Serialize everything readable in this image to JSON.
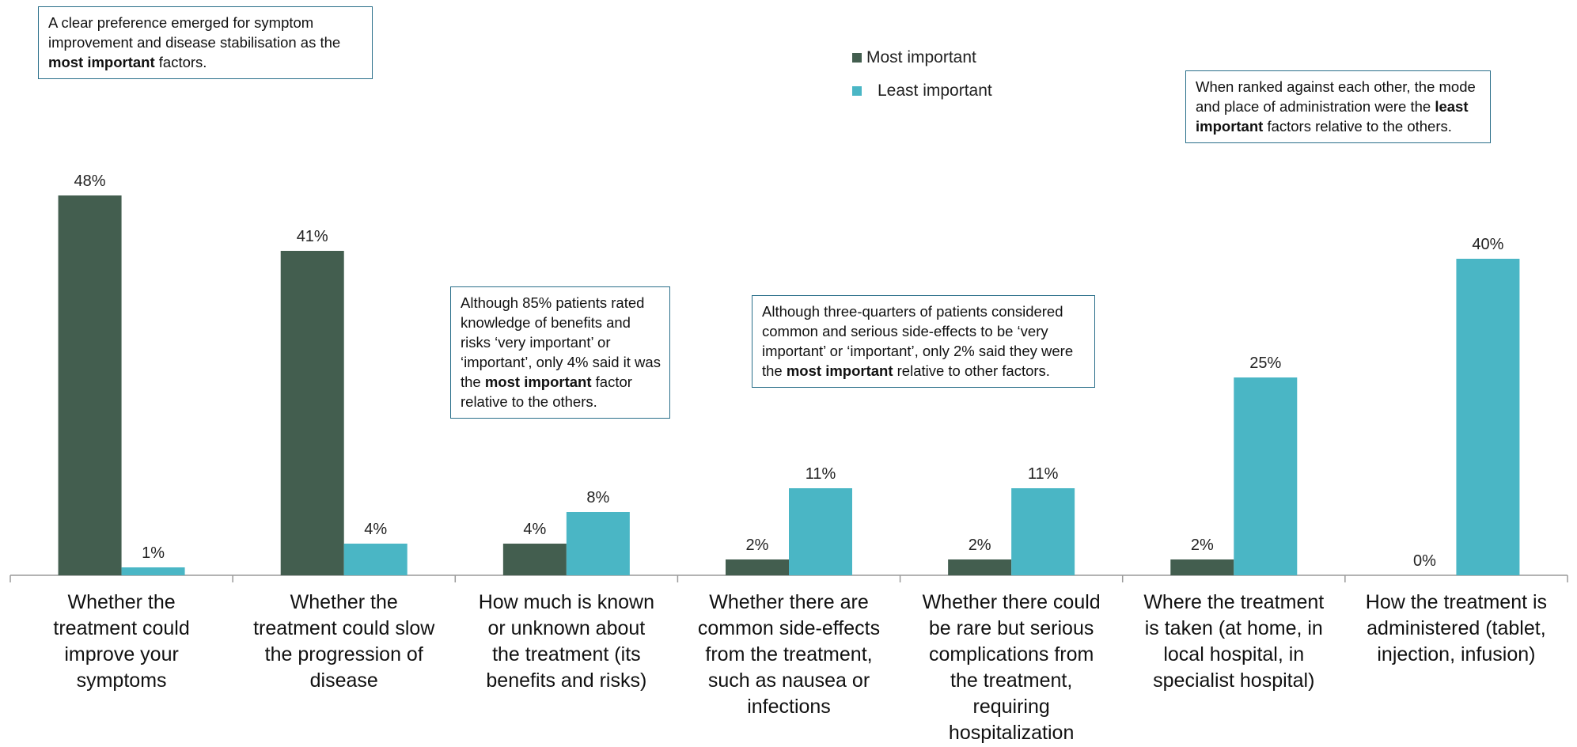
{
  "chart_data": {
    "type": "bar",
    "categories": [
      [
        "Whether the",
        "treatment could",
        "improve your",
        "symptoms"
      ],
      [
        "Whether the",
        "treatment could slow",
        "the progression of",
        "disease"
      ],
      [
        "How much is known",
        "or unknown about",
        "the treatment (its",
        "benefits and risks)"
      ],
      [
        "Whether there are",
        "common side-effects",
        "from the treatment,",
        "such as nausea or",
        "infections"
      ],
      [
        "Whether there could",
        "be rare but serious",
        "complications from",
        "the treatment,",
        "requiring",
        "hospitalization"
      ],
      [
        "Where the treatment",
        "is taken (at home, in",
        "local hospital, in",
        "specialist hospital)"
      ],
      [
        "How the treatment is",
        "administered (tablet,",
        "injection, infusion)"
      ]
    ],
    "series": [
      {
        "name": "Most important",
        "values": [
          48,
          41,
          4,
          2,
          2,
          2,
          0
        ],
        "color": "#435e4f"
      },
      {
        "name": "Least important",
        "values": [
          1,
          4,
          8,
          11,
          11,
          25,
          40
        ],
        "color": "#4ab6c5"
      }
    ],
    "value_suffix": "%",
    "ylim": [
      0,
      48
    ],
    "grid": false,
    "legend_position": "top-center"
  },
  "legend": {
    "most": "Most important",
    "least": "Least important"
  },
  "annotations": [
    {
      "text_before": "A clear preference emerged for symptom improvement and disease stabilisation as the ",
      "bold": "most important",
      "text_after": " factors."
    },
    {
      "text_before": "When ranked against each other, the mode and place of administration were the ",
      "bold": "least important",
      "text_after": " factors relative to the others."
    },
    {
      "text_before": "Although 85% patients rated knowledge of benefits and risks ‘very important’ or ‘important’, only 4% said it was the ",
      "bold": "most important",
      "text_after": " factor relative to the others."
    },
    {
      "text_before": "Although three-quarters of patients considered common and serious side-effects to be ‘very important’ or ‘important’, only 2% said they were the ",
      "bold": "most important",
      "text_after": " relative to other factors."
    }
  ]
}
